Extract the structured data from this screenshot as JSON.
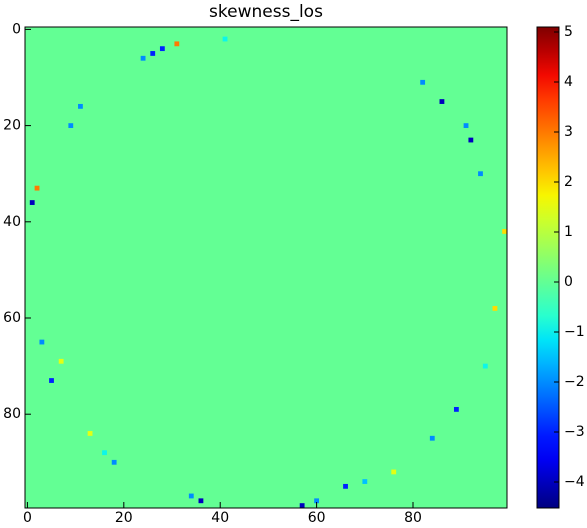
{
  "chart_data": {
    "type": "heatmap",
    "title": "skewness_los",
    "colormap": "jet",
    "xlim": [
      -0.5,
      99.5
    ],
    "ylim": [
      99.5,
      -0.5
    ],
    "xticks": [
      0,
      20,
      40,
      60,
      80
    ],
    "yticks": [
      0,
      20,
      40,
      60,
      80
    ],
    "clim": [
      -4.52,
      5.1
    ],
    "cticks": [
      {
        "value": -4,
        "label": "−4"
      },
      {
        "value": -3,
        "label": "−3"
      },
      {
        "value": -2,
        "label": "−2"
      },
      {
        "value": -1,
        "label": "−1"
      },
      0,
      1,
      2,
      3,
      4,
      5
    ],
    "fill_value": 0,
    "points": {
      "x": [
        36,
        57,
        26,
        31,
        28,
        24,
        86,
        92,
        91,
        1,
        2,
        5,
        89,
        66,
        18,
        9,
        13,
        99,
        82,
        60,
        41,
        94,
        3,
        11,
        70,
        76,
        97,
        34,
        16,
        7,
        95,
        84
      ],
      "y": [
        98,
        99,
        5,
        3,
        4,
        6,
        15,
        23,
        20,
        36,
        33,
        73,
        79,
        95,
        90,
        20,
        84,
        42,
        11,
        98,
        2,
        30,
        65,
        16,
        94,
        92,
        58,
        97,
        88,
        69,
        70,
        85
      ],
      "values": [
        -4,
        -4,
        -3,
        3,
        -3,
        -2,
        -4,
        -4,
        -2,
        -4,
        3,
        -3,
        -3,
        -3,
        -2,
        -2,
        1.5,
        2,
        -2,
        -2,
        -1,
        -2,
        -2,
        -2,
        -1.5,
        1.5,
        2,
        -2,
        -1,
        1.5,
        -1,
        -2
      ]
    }
  }
}
